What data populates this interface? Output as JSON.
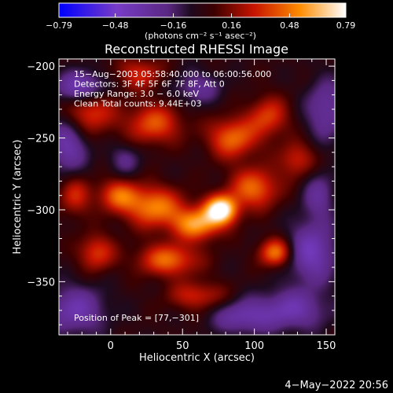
{
  "chart_data": {
    "type": "heatmap",
    "title": "Reconstructed RHESSI Image",
    "xlabel": "Heliocentric X (arcsec)",
    "ylabel": "Heliocentric Y (arcsec)",
    "xlim": [
      -36,
      156
    ],
    "ylim": [
      -387,
      -195
    ],
    "x_ticks": [
      0,
      50,
      100,
      150
    ],
    "y_ticks": [
      -200,
      -250,
      -300,
      -350
    ],
    "x_tick_labels": [
      "0",
      "50",
      "100",
      "150"
    ],
    "y_tick_labels": [
      "−200",
      "−250",
      "−300",
      "−350"
    ],
    "colorbar": {
      "min": -0.79,
      "max": 0.79,
      "ticks": [
        -0.79,
        -0.48,
        -0.16,
        0.16,
        0.48,
        0.79
      ],
      "tick_labels": [
        "−0.79",
        "−0.48",
        "−0.16",
        "0.16",
        "0.48",
        "0.79"
      ],
      "unit_label": "(photons cm⁻² s⁻¹ asec⁻²)"
    },
    "annotations": [
      "15−Aug−2003 05:58:40.000 to 06:00:56.000",
      "Detectors: 3F 4F 5F 6F 7F 8F, Att 0",
      "Energy Range: 3.0 − 6.0 keV",
      "Clean     Total counts: 9.44E+03"
    ],
    "peak_label": "Position of Peak = [77,−301]",
    "peak": [
      77,
      -301
    ],
    "sources": [
      {
        "x": 77,
        "y": -300,
        "amp": 0.8,
        "sx": 8,
        "sy": 7
      },
      {
        "x": 60,
        "y": -310,
        "amp": 0.55,
        "sx": 12,
        "sy": 8
      },
      {
        "x": 30,
        "y": -298,
        "amp": 0.5,
        "sx": 14,
        "sy": 10
      },
      {
        "x": 5,
        "y": -290,
        "amp": 0.4,
        "sx": 10,
        "sy": 8
      },
      {
        "x": 100,
        "y": -285,
        "amp": 0.45,
        "sx": 12,
        "sy": 10
      },
      {
        "x": 115,
        "y": -330,
        "amp": 0.5,
        "sx": 8,
        "sy": 7
      },
      {
        "x": 40,
        "y": -335,
        "amp": 0.45,
        "sx": 15,
        "sy": 8
      },
      {
        "x": -10,
        "y": -330,
        "amp": 0.35,
        "sx": 9,
        "sy": 9
      },
      {
        "x": 85,
        "y": -250,
        "amp": 0.45,
        "sx": 12,
        "sy": 10
      },
      {
        "x": 30,
        "y": -240,
        "amp": 0.4,
        "sx": 14,
        "sy": 10
      },
      {
        "x": -15,
        "y": -230,
        "amp": 0.4,
        "sx": 12,
        "sy": 12
      },
      {
        "x": 110,
        "y": -235,
        "amp": 0.35,
        "sx": 10,
        "sy": 10
      },
      {
        "x": 130,
        "y": -265,
        "amp": 0.3,
        "sx": 9,
        "sy": 9
      },
      {
        "x": 60,
        "y": -360,
        "amp": 0.3,
        "sx": 14,
        "sy": 7
      },
      {
        "x": -25,
        "y": -290,
        "amp": 0.3,
        "sx": 8,
        "sy": 10
      },
      {
        "x": 20,
        "y": -205,
        "amp": 0.3,
        "sx": 12,
        "sy": 8
      },
      {
        "x": -20,
        "y": -215,
        "amp": -0.5,
        "sx": 12,
        "sy": 8
      },
      {
        "x": 140,
        "y": -330,
        "amp": -0.4,
        "sx": 12,
        "sy": 15
      },
      {
        "x": 125,
        "y": -370,
        "amp": -0.35,
        "sx": 18,
        "sy": 10
      },
      {
        "x": -30,
        "y": -255,
        "amp": -0.35,
        "sx": 10,
        "sy": 14
      },
      {
        "x": -25,
        "y": -370,
        "amp": -0.35,
        "sx": 15,
        "sy": 12
      },
      {
        "x": 150,
        "y": -230,
        "amp": -0.3,
        "sx": 10,
        "sy": 15
      },
      {
        "x": 60,
        "y": -215,
        "amp": -0.25,
        "sx": 12,
        "sy": 8
      },
      {
        "x": 10,
        "y": -265,
        "amp": -0.2,
        "sx": 8,
        "sy": 8
      },
      {
        "x": 90,
        "y": -375,
        "amp": -0.3,
        "sx": 14,
        "sy": 8
      },
      {
        "x": 145,
        "y": -290,
        "amp": -0.25,
        "sx": 8,
        "sy": 12
      }
    ]
  },
  "timestamp": "4−May−2022 20:56"
}
